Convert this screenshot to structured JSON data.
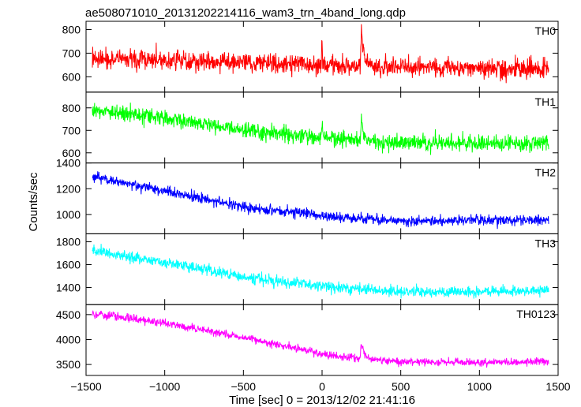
{
  "chart_data": {
    "type": "line",
    "title": "ae508071010_20131202214116_wam3_trn_4band_long.qdp",
    "xlabel": "Time [sec] 0 = 2013/12/02 21:41:16",
    "ylabel": "Counts/sec",
    "xlim": [
      -1500,
      1500
    ],
    "x_ticks": [
      -1500,
      -1000,
      -500,
      0,
      500,
      1000,
      1500
    ],
    "x_ticklabels": [
      "−1500",
      "−1000",
      "−500",
      "0",
      "500",
      "1000",
      "1500"
    ],
    "x_range": [
      -1460,
      1440
    ],
    "grid": false,
    "panels": [
      {
        "name": "TH0",
        "color": "#ff0000",
        "ylim": [
          535,
          835
        ],
        "ticks": [
          600,
          700,
          800
        ],
        "trend": [
          [
            -1460,
            680
          ],
          [
            0,
            650
          ],
          [
            1440,
            630
          ]
        ],
        "noise": 38,
        "peak": {
          "x": 250,
          "y": 810
        },
        "step": {
          "x": 0,
          "amp": 70
        }
      },
      {
        "name": "TH1",
        "color": "#00ff00",
        "ylim": [
          555,
          870
        ],
        "ticks": [
          600,
          700,
          800
        ],
        "trend": [
          [
            -1460,
            790
          ],
          [
            -1000,
            755
          ],
          [
            -500,
            700
          ],
          [
            0,
            670
          ],
          [
            400,
            645
          ],
          [
            1440,
            640
          ]
        ],
        "noise": 33,
        "peak": {
          "x": 250,
          "y": 750
        },
        "step": {
          "x": 0,
          "amp": 60
        }
      },
      {
        "name": "TH2",
        "color": "#0000ff",
        "ylim": [
          850,
          1400
        ],
        "ticks": [
          1000,
          1200,
          1400
        ],
        "trend": [
          [
            -1460,
            1295
          ],
          [
            -1000,
            1180
          ],
          [
            -500,
            1060
          ],
          [
            0,
            990
          ],
          [
            500,
            950
          ],
          [
            1000,
            955
          ],
          [
            1440,
            960
          ]
        ],
        "noise": 38,
        "peak": null,
        "step": null
      },
      {
        "name": "TH3",
        "color": "#00ffff",
        "ylim": [
          1250,
          1870
        ],
        "ticks": [
          1400,
          1600,
          1800
        ],
        "trend": [
          [
            -1460,
            1720
          ],
          [
            -1000,
            1620
          ],
          [
            -500,
            1490
          ],
          [
            0,
            1410
          ],
          [
            500,
            1360
          ],
          [
            1000,
            1360
          ],
          [
            1440,
            1380
          ]
        ],
        "noise": 45,
        "peak": null,
        "step": null
      },
      {
        "name": "TH0123",
        "color": "#ff00ff",
        "ylim": [
          3280,
          4700
        ],
        "ticks": [
          3500,
          4000,
          4500
        ],
        "trend": [
          [
            -1460,
            4520
          ],
          [
            -1000,
            4330
          ],
          [
            -500,
            4040
          ],
          [
            0,
            3720
          ],
          [
            250,
            3620
          ],
          [
            500,
            3550
          ],
          [
            1000,
            3540
          ],
          [
            1440,
            3560
          ]
        ],
        "noise": 75,
        "peak": {
          "x": 250,
          "y": 3980
        },
        "step": null
      }
    ]
  }
}
